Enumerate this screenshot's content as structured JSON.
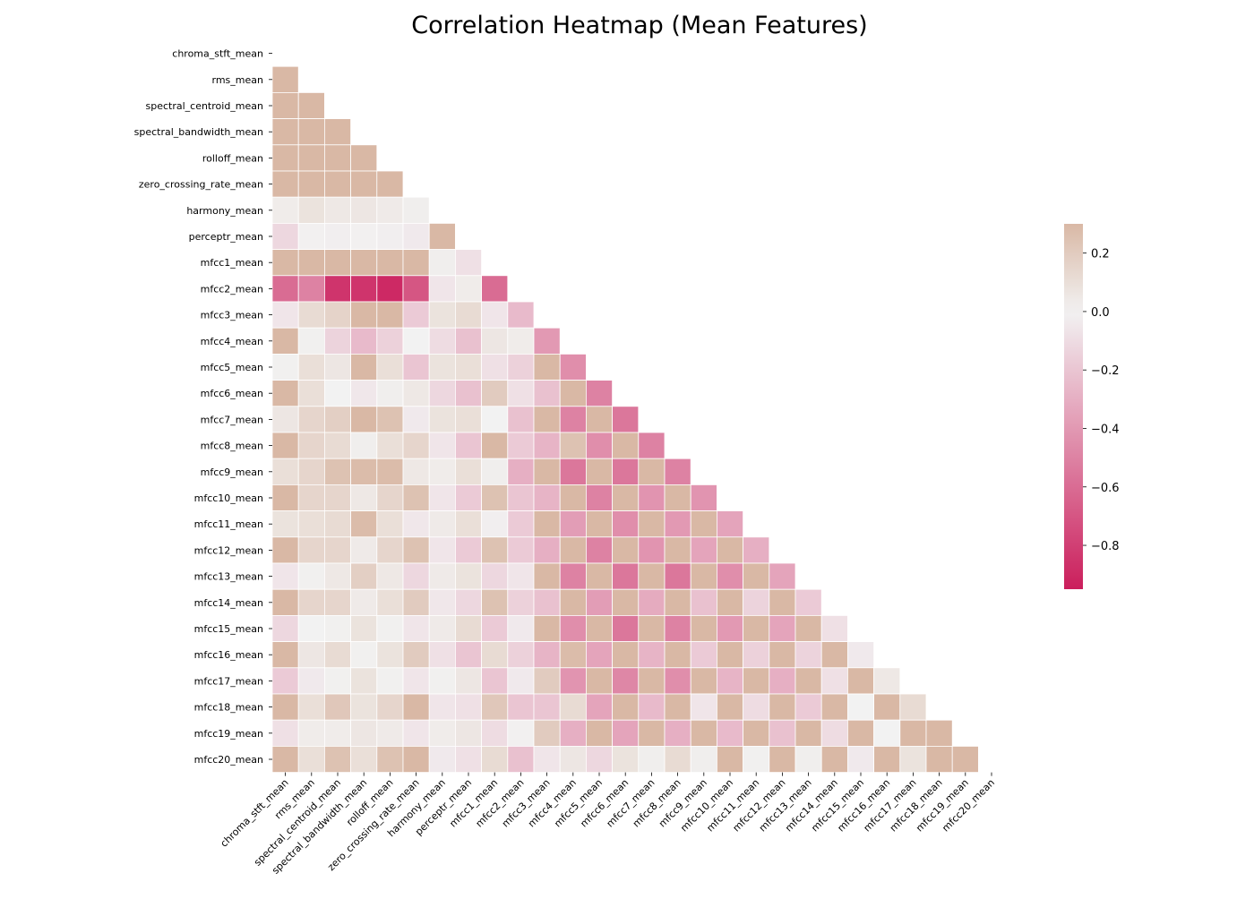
{
  "chart_data": {
    "type": "heatmap",
    "title": "Correlation Heatmap (Mean Features)",
    "mask": "upper-triangle-including-diagonal",
    "labels": [
      "chroma_stft_mean",
      "rms_mean",
      "spectral_centroid_mean",
      "spectral_bandwidth_mean",
      "rolloff_mean",
      "zero_crossing_rate_mean",
      "harmony_mean",
      "perceptr_mean",
      "mfcc1_mean",
      "mfcc2_mean",
      "mfcc3_mean",
      "mfcc4_mean",
      "mfcc5_mean",
      "mfcc6_mean",
      "mfcc7_mean",
      "mfcc8_mean",
      "mfcc9_mean",
      "mfcc10_mean",
      "mfcc11_mean",
      "mfcc12_mean",
      "mfcc13_mean",
      "mfcc14_mean",
      "mfcc15_mean",
      "mfcc16_mean",
      "mfcc17_mean",
      "mfcc18_mean",
      "mfcc19_mean",
      "mfcc20_mean"
    ],
    "lower_triangle_values": [
      [],
      [
        0.5
      ],
      [
        0.5,
        0.8
      ],
      [
        0.5,
        0.8,
        0.9
      ],
      [
        0.5,
        0.8,
        0.9,
        0.95
      ],
      [
        0.5,
        0.8,
        0.6,
        0.6,
        0.6
      ],
      [
        0.03,
        0.08,
        0.05,
        0.06,
        0.04,
        0.02
      ],
      [
        -0.12,
        -0.01,
        -0.02,
        -0.01,
        -0.02,
        -0.04,
        0.5
      ],
      [
        0.4,
        0.5,
        0.4,
        0.4,
        0.4,
        0.3,
        0.02,
        -0.08
      ],
      [
        -0.6,
        -0.5,
        -0.85,
        -0.85,
        -0.9,
        -0.7,
        -0.06,
        0.03,
        -0.6
      ],
      [
        -0.06,
        0.12,
        0.16,
        0.3,
        0.3,
        -0.18,
        0.08,
        0.12,
        -0.06,
        -0.25
      ],
      [
        0.3,
        0.01,
        -0.14,
        -0.25,
        -0.15,
        0.0,
        -0.1,
        -0.22,
        0.06,
        0.03,
        -0.4
      ],
      [
        0.01,
        0.1,
        0.06,
        0.3,
        0.1,
        -0.2,
        0.08,
        0.1,
        -0.08,
        -0.15,
        0.3,
        -0.45
      ],
      [
        0.3,
        0.1,
        0.0,
        -0.05,
        0.02,
        0.05,
        -0.12,
        -0.22,
        0.2,
        -0.08,
        -0.22,
        0.3,
        -0.5
      ],
      [
        0.06,
        0.15,
        0.18,
        0.3,
        0.25,
        -0.04,
        0.08,
        0.1,
        0.0,
        -0.22,
        0.3,
        -0.5,
        0.3,
        -0.55
      ],
      [
        0.3,
        0.15,
        0.12,
        0.02,
        0.1,
        0.15,
        -0.06,
        -0.2,
        0.3,
        -0.18,
        -0.28,
        0.25,
        -0.45,
        0.3,
        -0.5
      ],
      [
        0.1,
        0.15,
        0.25,
        0.28,
        0.28,
        0.05,
        0.03,
        0.1,
        0.02,
        -0.3,
        0.3,
        -0.55,
        0.3,
        -0.55,
        0.3,
        -0.5
      ],
      [
        0.3,
        0.15,
        0.15,
        0.05,
        0.15,
        0.25,
        -0.06,
        -0.18,
        0.25,
        -0.2,
        -0.28,
        0.3,
        -0.5,
        0.3,
        -0.42,
        0.3,
        -0.42
      ],
      [
        0.08,
        0.1,
        0.12,
        0.28,
        0.1,
        -0.05,
        0.04,
        0.1,
        -0.02,
        -0.18,
        0.3,
        -0.38,
        0.3,
        -0.45,
        0.3,
        -0.4,
        0.3,
        -0.35
      ],
      [
        0.3,
        0.15,
        0.15,
        0.04,
        0.15,
        0.25,
        -0.06,
        -0.18,
        0.25,
        -0.18,
        -0.3,
        0.3,
        -0.5,
        0.3,
        -0.42,
        0.3,
        -0.35,
        0.3,
        -0.3
      ],
      [
        -0.06,
        0.01,
        0.05,
        0.18,
        0.05,
        -0.12,
        0.04,
        0.08,
        -0.12,
        -0.06,
        0.3,
        -0.5,
        0.3,
        -0.55,
        0.3,
        -0.55,
        0.3,
        -0.45,
        0.3,
        -0.35
      ],
      [
        0.3,
        0.15,
        0.15,
        0.04,
        0.1,
        0.2,
        -0.05,
        -0.12,
        0.25,
        -0.15,
        -0.22,
        0.3,
        -0.38,
        0.3,
        -0.32,
        0.3,
        -0.22,
        0.3,
        -0.14,
        0.3,
        -0.18
      ],
      [
        -0.12,
        0.0,
        0.01,
        0.08,
        0.01,
        -0.06,
        0.04,
        0.12,
        -0.18,
        -0.04,
        0.3,
        -0.45,
        0.3,
        -0.55,
        0.3,
        -0.5,
        0.3,
        -0.4,
        0.3,
        -0.35,
        0.3,
        -0.08
      ],
      [
        0.3,
        0.06,
        0.12,
        0.01,
        0.08,
        0.2,
        -0.08,
        -0.2,
        0.12,
        -0.15,
        -0.28,
        0.28,
        -0.35,
        0.3,
        -0.28,
        0.3,
        -0.18,
        0.3,
        -0.15,
        0.3,
        -0.14,
        0.3,
        -0.04
      ],
      [
        -0.18,
        -0.04,
        0.01,
        0.08,
        0.01,
        -0.06,
        0.01,
        0.06,
        -0.2,
        -0.04,
        0.2,
        -0.42,
        0.3,
        -0.48,
        0.3,
        -0.45,
        0.3,
        -0.28,
        0.3,
        -0.3,
        0.3,
        -0.08,
        0.3,
        0.05
      ],
      [
        0.3,
        0.1,
        0.22,
        0.08,
        0.15,
        0.3,
        -0.06,
        -0.08,
        0.22,
        -0.2,
        -0.2,
        0.12,
        -0.35,
        0.3,
        -0.25,
        0.3,
        -0.06,
        0.3,
        -0.1,
        0.3,
        -0.18,
        0.3,
        0.0,
        0.3,
        0.12
      ],
      [
        -0.08,
        0.03,
        0.03,
        0.06,
        0.04,
        -0.06,
        0.03,
        0.06,
        -0.1,
        -0.01,
        0.2,
        -0.3,
        0.3,
        -0.35,
        0.3,
        -0.3,
        0.3,
        -0.25,
        0.3,
        -0.22,
        0.3,
        -0.1,
        0.3,
        0.0,
        0.3,
        0.3
      ],
      [
        0.3,
        0.1,
        0.25,
        0.1,
        0.25,
        0.3,
        -0.04,
        -0.08,
        0.12,
        -0.22,
        -0.06,
        0.06,
        -0.12,
        0.08,
        0.02,
        0.12,
        0.02,
        0.3,
        0.01,
        0.3,
        0.02,
        0.3,
        -0.04,
        0.3,
        0.08,
        0.3,
        0.3
      ]
    ],
    "colorbar": {
      "vmin": -0.95,
      "vmax": 0.3,
      "ticks": [
        0.2,
        0.0,
        -0.2,
        -0.4,
        -0.6,
        -0.8
      ],
      "tick_labels": [
        "0.2",
        "0.0",
        "−0.2",
        "−0.4",
        "−0.6",
        "−0.8"
      ]
    },
    "colors": {
      "high": "#d9b8a5",
      "mid": "#f2f2f2",
      "low": "#cb1e5c",
      "cell_border": "#ffffff"
    },
    "grid": false,
    "legend": "colorbar-right"
  }
}
